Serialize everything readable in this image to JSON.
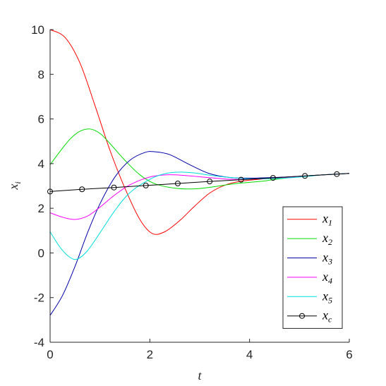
{
  "chart_data": {
    "type": "line",
    "xlabel": "t",
    "ylabel": "x",
    "ylabel_sub": "i",
    "xlim": [
      0,
      6
    ],
    "ylim": [
      -4,
      10
    ],
    "xticks": [
      "0",
      "2",
      "4",
      "6"
    ],
    "yticks": [
      "-4",
      "-2",
      "0",
      "2",
      "4",
      "6",
      "8",
      "10"
    ],
    "grid": false,
    "legend_position": "bottom-right",
    "series": [
      {
        "name": "x",
        "sub": "1",
        "color": "#ff0000",
        "marker": "none",
        "points": [
          [
            0,
            10
          ],
          [
            0.3,
            9.65
          ],
          [
            0.6,
            8.5
          ],
          [
            0.9,
            6.6
          ],
          [
            1.2,
            4.6
          ],
          [
            1.5,
            2.9
          ],
          [
            1.8,
            1.5
          ],
          [
            2.05,
            0.87
          ],
          [
            2.3,
            0.95
          ],
          [
            2.6,
            1.45
          ],
          [
            2.9,
            2.1
          ],
          [
            3.2,
            2.68
          ],
          [
            3.5,
            3.03
          ],
          [
            3.8,
            3.2
          ],
          [
            4.2,
            3.3
          ],
          [
            4.6,
            3.38
          ],
          [
            5.0,
            3.43
          ],
          [
            5.5,
            3.5
          ],
          [
            6.0,
            3.56
          ]
        ]
      },
      {
        "name": "x",
        "sub": "2",
        "color": "#00dd00",
        "marker": "none",
        "points": [
          [
            0,
            3.95
          ],
          [
            0.2,
            4.55
          ],
          [
            0.4,
            5.1
          ],
          [
            0.6,
            5.45
          ],
          [
            0.8,
            5.55
          ],
          [
            1.0,
            5.35
          ],
          [
            1.2,
            4.9
          ],
          [
            1.5,
            4.15
          ],
          [
            1.8,
            3.5
          ],
          [
            2.1,
            3.1
          ],
          [
            2.5,
            2.9
          ],
          [
            2.9,
            2.87
          ],
          [
            3.3,
            2.97
          ],
          [
            3.7,
            3.1
          ],
          [
            4.2,
            3.2
          ],
          [
            4.6,
            3.32
          ],
          [
            5.0,
            3.42
          ],
          [
            5.5,
            3.5
          ],
          [
            6.0,
            3.56
          ]
        ]
      },
      {
        "name": "x",
        "sub": "3",
        "color": "#0000aa",
        "marker": "none",
        "points": [
          [
            0,
            -2.8
          ],
          [
            0.25,
            -1.9
          ],
          [
            0.5,
            -0.6
          ],
          [
            0.75,
            0.9
          ],
          [
            1.0,
            2.2
          ],
          [
            1.3,
            3.4
          ],
          [
            1.6,
            4.15
          ],
          [
            1.9,
            4.5
          ],
          [
            2.1,
            4.53
          ],
          [
            2.4,
            4.4
          ],
          [
            2.8,
            3.95
          ],
          [
            3.2,
            3.55
          ],
          [
            3.6,
            3.38
          ],
          [
            4.0,
            3.35
          ],
          [
            4.5,
            3.38
          ],
          [
            5.0,
            3.43
          ],
          [
            5.5,
            3.5
          ],
          [
            6.0,
            3.56
          ]
        ]
      },
      {
        "name": "x",
        "sub": "4",
        "color": "#ff00ff",
        "marker": "none",
        "points": [
          [
            0,
            1.8
          ],
          [
            0.25,
            1.6
          ],
          [
            0.5,
            1.5
          ],
          [
            0.75,
            1.65
          ],
          [
            1.0,
            2.05
          ],
          [
            1.3,
            2.6
          ],
          [
            1.6,
            3.05
          ],
          [
            2.0,
            3.4
          ],
          [
            2.4,
            3.5
          ],
          [
            2.8,
            3.45
          ],
          [
            3.2,
            3.37
          ],
          [
            3.6,
            3.3
          ],
          [
            4.0,
            3.3
          ],
          [
            4.5,
            3.35
          ],
          [
            5.0,
            3.42
          ],
          [
            5.5,
            3.5
          ],
          [
            6.0,
            3.56
          ]
        ]
      },
      {
        "name": "x",
        "sub": "5",
        "color": "#00dddd",
        "marker": "none",
        "points": [
          [
            0,
            0.95
          ],
          [
            0.2,
            0.25
          ],
          [
            0.4,
            -0.2
          ],
          [
            0.55,
            -0.27
          ],
          [
            0.75,
            0.1
          ],
          [
            1.0,
            0.9
          ],
          [
            1.3,
            1.9
          ],
          [
            1.6,
            2.7
          ],
          [
            2.0,
            3.3
          ],
          [
            2.3,
            3.55
          ],
          [
            2.6,
            3.62
          ],
          [
            2.9,
            3.58
          ],
          [
            3.2,
            3.48
          ],
          [
            3.6,
            3.38
          ],
          [
            4.0,
            3.32
          ],
          [
            4.5,
            3.33
          ],
          [
            5.0,
            3.4
          ],
          [
            5.5,
            3.5
          ],
          [
            6.0,
            3.56
          ]
        ]
      },
      {
        "name": "x",
        "sub": "c",
        "color": "#000000",
        "marker": "circle",
        "points": [
          [
            0,
            2.75
          ],
          [
            0.64,
            2.85
          ],
          [
            1.28,
            2.93
          ],
          [
            1.92,
            3.02
          ],
          [
            2.56,
            3.11
          ],
          [
            3.2,
            3.2
          ],
          [
            3.83,
            3.28
          ],
          [
            4.47,
            3.36
          ],
          [
            5.11,
            3.45
          ],
          [
            5.75,
            3.53
          ],
          [
            6.0,
            3.56
          ]
        ],
        "marker_points": [
          [
            0,
            2.75
          ],
          [
            0.64,
            2.85
          ],
          [
            1.28,
            2.93
          ],
          [
            1.92,
            3.02
          ],
          [
            2.56,
            3.11
          ],
          [
            3.2,
            3.2
          ],
          [
            3.83,
            3.28
          ],
          [
            4.47,
            3.36
          ],
          [
            5.11,
            3.45
          ],
          [
            5.75,
            3.53
          ]
        ]
      }
    ]
  }
}
